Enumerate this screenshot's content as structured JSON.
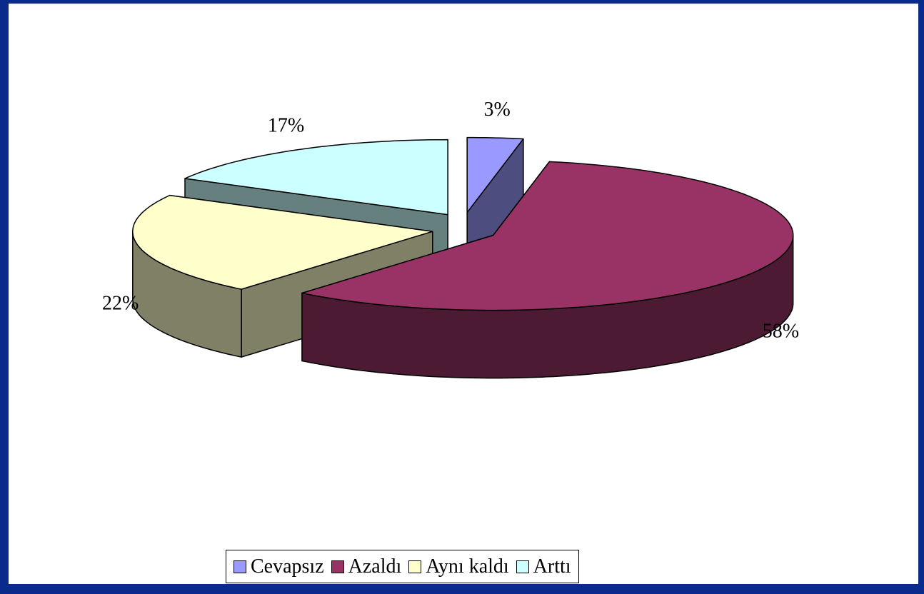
{
  "chart_data": {
    "type": "pie",
    "categories": [
      "Cevapsız",
      "Azaldı",
      "Aynı kaldı",
      "Arttı"
    ],
    "values": [
      3,
      58,
      22,
      17
    ],
    "value_labels": [
      "3%",
      "58%",
      "22%",
      "17%"
    ],
    "colors": [
      "#9999ff",
      "#993366",
      "#ffffcc",
      "#ccffff"
    ],
    "legend": "bottom"
  }
}
